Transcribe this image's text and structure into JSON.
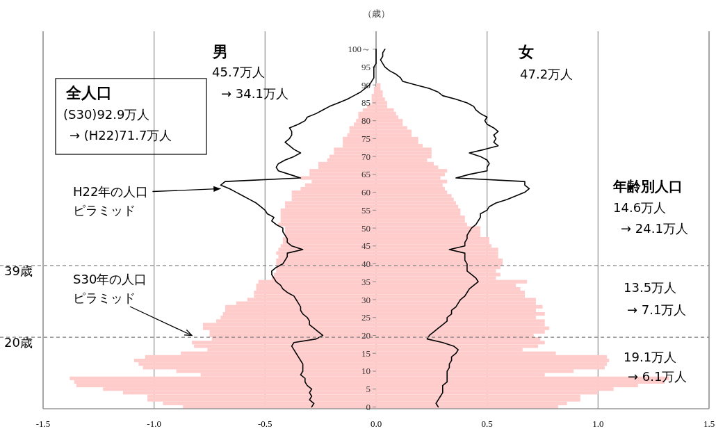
{
  "chart_data": {
    "type": "bar",
    "orientation": "horizontal",
    "stacked": true,
    "ylabel": "（歳）",
    "x": [
      100,
      99,
      98,
      97,
      96,
      95,
      94,
      93,
      92,
      91,
      90,
      89,
      88,
      87,
      86,
      85,
      84,
      83,
      82,
      81,
      80,
      79,
      78,
      77,
      76,
      75,
      74,
      73,
      72,
      71,
      70,
      69,
      68,
      67,
      66,
      65,
      64,
      63,
      62,
      61,
      60,
      59,
      58,
      57,
      56,
      55,
      54,
      53,
      52,
      51,
      50,
      49,
      48,
      47,
      46,
      45,
      44,
      43,
      42,
      41,
      40,
      39,
      38,
      37,
      36,
      35,
      34,
      33,
      32,
      31,
      30,
      29,
      28,
      27,
      26,
      25,
      24,
      23,
      22,
      21,
      20,
      19,
      18,
      17,
      16,
      15,
      14,
      13,
      12,
      11,
      10,
      9,
      8,
      7,
      6,
      5,
      4,
      3,
      2,
      1,
      0
    ],
    "series": [
      {
        "color": "#ffcccc",
        "values": [
          0,
          0,
          0,
          0,
          0,
          0,
          0,
          0,
          0,
          0,
          0,
          -0.01,
          -0.01,
          -0.02,
          -0.02,
          -0.02,
          -0.04,
          -0.06,
          -0.08,
          -0.08,
          -0.09,
          -0.1,
          -0.12,
          -0.12,
          -0.13,
          -0.15,
          -0.15,
          -0.15,
          -0.19,
          -0.19,
          -0.21,
          -0.22,
          -0.26,
          -0.26,
          -0.3,
          -0.3,
          -0.34,
          -0.29,
          -0.32,
          -0.34,
          -0.38,
          -0.38,
          -0.38,
          -0.41,
          -0.41,
          -0.43,
          -0.43,
          -0.43,
          -0.43,
          -0.44,
          -0.41,
          -0.41,
          -0.41,
          -0.42,
          -0.42,
          -0.43,
          -0.44,
          -0.45,
          -0.44,
          -0.45,
          -0.45,
          -0.45,
          -0.45,
          -0.46,
          -0.47,
          -0.53,
          -0.54,
          -0.54,
          -0.55,
          -0.55,
          -0.58,
          -0.63,
          -0.68,
          -0.68,
          -0.69,
          -0.7,
          -0.72,
          -0.78,
          -0.78,
          -0.75,
          -0.75,
          -0.74,
          -0.83,
          -0.82,
          -0.76,
          -0.88,
          -1.04,
          -1.09,
          -1.07,
          -1.05,
          -0.9,
          -0.79,
          -1.38,
          -1.36,
          -1.35,
          -1.23,
          -1.14,
          -1.03,
          -1.03,
          -0.96,
          -0.87
        ]
      },
      {
        "color": "#ffcccc",
        "values": [
          0,
          0,
          0,
          0,
          0,
          0,
          0,
          0,
          0,
          0,
          0.02,
          0.02,
          0.03,
          0.03,
          0.04,
          0.05,
          0.05,
          0.08,
          0.09,
          0.1,
          0.12,
          0.12,
          0.14,
          0.16,
          0.16,
          0.19,
          0.19,
          0.21,
          0.25,
          0.25,
          0.25,
          0.23,
          0.26,
          0.28,
          0.32,
          0.31,
          0.29,
          0.32,
          0.3,
          0.31,
          0.32,
          0.34,
          0.35,
          0.36,
          0.37,
          0.38,
          0.38,
          0.4,
          0.4,
          0.41,
          0.47,
          0.47,
          0.47,
          0.51,
          0.51,
          0.52,
          0.55,
          0.55,
          0.55,
          0.57,
          0.57,
          0.56,
          0.54,
          0.56,
          0.54,
          0.68,
          0.63,
          0.65,
          0.67,
          0.67,
          0.72,
          0.72,
          0.75,
          0.72,
          0.76,
          0.72,
          0.76,
          0.76,
          0.78,
          0.76,
          0.71,
          0.74,
          0.76,
          0.73,
          0.66,
          0.81,
          1.04,
          1.05,
          1.04,
          1.03,
          0.89,
          0.76,
          1.32,
          1.3,
          1.18,
          1.07,
          1.0,
          0.92,
          0.92,
          0.86,
          0.82
        ]
      },
      {
        "type": "line",
        "color": "#000000",
        "values": [
          0,
          0,
          0,
          0,
          0,
          -0.01,
          -0.01,
          -0.01,
          -0.01,
          -0.02,
          -0.03,
          -0.05,
          -0.07,
          -0.1,
          -0.13,
          -0.17,
          -0.21,
          -0.24,
          -0.27,
          -0.31,
          -0.32,
          -0.35,
          -0.39,
          -0.38,
          -0.38,
          -0.39,
          -0.41,
          -0.39,
          -0.37,
          -0.34,
          -0.37,
          -0.41,
          -0.44,
          -0.45,
          -0.44,
          -0.39,
          -0.34,
          -0.68,
          -0.7,
          -0.66,
          -0.63,
          -0.6,
          -0.57,
          -0.54,
          -0.52,
          -0.5,
          -0.49,
          -0.46,
          -0.47,
          -0.45,
          -0.42,
          -0.42,
          -0.41,
          -0.4,
          -0.4,
          -0.38,
          -0.33,
          -0.4,
          -0.4,
          -0.41,
          -0.42,
          -0.45,
          -0.47,
          -0.47,
          -0.46,
          -0.45,
          -0.43,
          -0.42,
          -0.4,
          -0.37,
          -0.36,
          -0.35,
          -0.34,
          -0.34,
          -0.33,
          -0.31,
          -0.3,
          -0.3,
          -0.28,
          -0.26,
          -0.24,
          -0.27,
          -0.37,
          -0.38,
          -0.37,
          -0.36,
          -0.35,
          -0.34,
          -0.33,
          -0.33,
          -0.33,
          -0.34,
          -0.32,
          -0.32,
          -0.31,
          -0.29,
          -0.3,
          -0.29,
          -0.3,
          -0.28,
          -0.29
        ]
      },
      {
        "type": "line",
        "color": "#000000",
        "values": [
          0.04,
          0.03,
          0.03,
          0.02,
          0.03,
          0.04,
          0.06,
          0.09,
          0.11,
          0.12,
          0.18,
          0.24,
          0.28,
          0.3,
          0.36,
          0.41,
          0.44,
          0.45,
          0.47,
          0.5,
          0.49,
          0.5,
          0.53,
          0.55,
          0.53,
          0.54,
          0.53,
          0.55,
          0.49,
          0.42,
          0.47,
          0.5,
          0.51,
          0.5,
          0.5,
          0.42,
          0.36,
          0.67,
          0.67,
          0.69,
          0.67,
          0.63,
          0.59,
          0.54,
          0.51,
          0.5,
          0.47,
          0.47,
          0.46,
          0.45,
          0.43,
          0.42,
          0.41,
          0.41,
          0.4,
          0.4,
          0.33,
          0.4,
          0.4,
          0.4,
          0.41,
          0.41,
          0.41,
          0.43,
          0.45,
          0.46,
          0.44,
          0.42,
          0.41,
          0.4,
          0.38,
          0.37,
          0.36,
          0.34,
          0.34,
          0.32,
          0.32,
          0.3,
          0.28,
          0.26,
          0.24,
          0.23,
          0.3,
          0.35,
          0.37,
          0.36,
          0.34,
          0.34,
          0.33,
          0.33,
          0.32,
          0.32,
          0.32,
          0.32,
          0.3,
          0.3,
          0.3,
          0.29,
          0.28,
          0.27,
          0.28
        ]
      }
    ],
    "xlim": [
      -1.5,
      1.5
    ],
    "xticks": [
      {
        "value": -1.5,
        "label": "-1.5"
      },
      {
        "value": -1,
        "label": "-1.0"
      },
      {
        "value": -0.5,
        "label": "-0.5"
      },
      {
        "value": 0,
        "label": "0.0"
      },
      {
        "value": 0.5,
        "label": "0.5"
      },
      {
        "value": 1,
        "label": "1.0"
      },
      {
        "value": 1.5,
        "label": "1.5"
      }
    ],
    "ylim": [
      -0.5,
      105
    ],
    "yticks": [
      0,
      5,
      10,
      15,
      20,
      25,
      30,
      35,
      40,
      45,
      50,
      55,
      60,
      65,
      70,
      75,
      80,
      85,
      90,
      95,
      {
        "value": 100,
        "label": "100～"
      }
    ],
    "grid": "x",
    "ref_lines": [
      {
        "axis": "y",
        "value": 39.5,
        "label": "39歳",
        "color": "#808080",
        "line_style": "dashed"
      },
      {
        "axis": "y",
        "value": 19.5,
        "label": "20歳",
        "color": "#808080",
        "line_style": "dashed"
      }
    ],
    "annotations": [
      "男",
      "45.7万人",
      "→ 34.1万人",
      "女",
      "47.2万人",
      "全人口",
      "(S30)92.9万人",
      "→ (H22)71.7万人",
      "年齢別人口",
      "14.6万人",
      "→ 24.1万人",
      "13.5万人",
      "→ 7.1万人",
      "19.1万人",
      "→ 6.1万人",
      {
        "text": "H22年の人口ピラミッド",
        "x": -0.7,
        "y": 61
      },
      {
        "text": "S30年の人口ピラミッド",
        "x": -0.83,
        "y": 20
      }
    ]
  }
}
